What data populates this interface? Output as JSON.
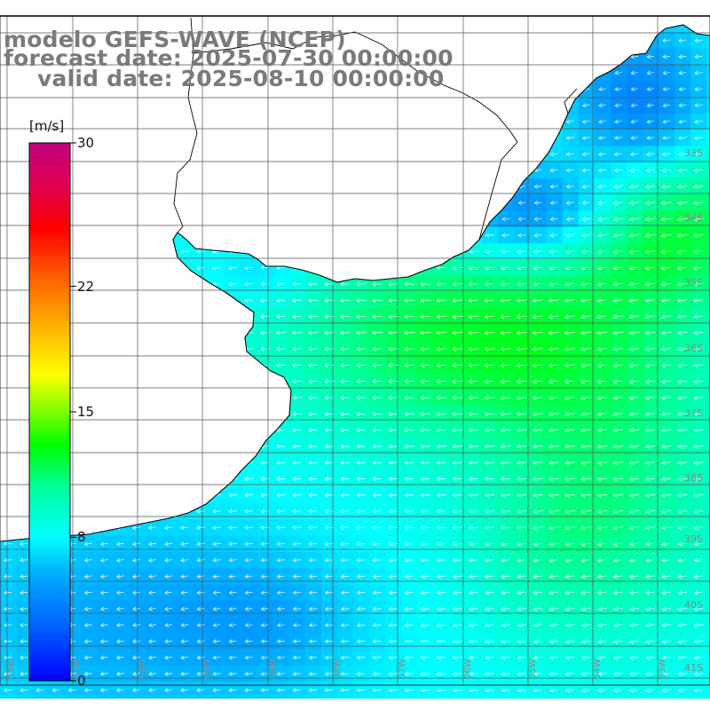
{
  "title": {
    "model": "modelo GEFS-WAVE (NCEP)",
    "forecast": "forecast date: 2025-07-30 00:00:00",
    "valid": "valid date: 2025-08-10 00:00:00"
  },
  "colorbar": {
    "unit": "[m/s]",
    "min": 0,
    "max": 30,
    "tick_labels": [
      "30",
      "22",
      "15",
      "8",
      "0"
    ],
    "tick_values": [
      30,
      22,
      15,
      8,
      0
    ],
    "colors": [
      "#0000ff",
      "#0060ff",
      "#00b0ff",
      "#00ffff",
      "#00ff9a",
      "#00ff00",
      "#7fff00",
      "#ffff00",
      "#ffb000",
      "#ff6000",
      "#ff0000",
      "#e00050",
      "#c00080"
    ]
  },
  "lat_labels": [
    "33S",
    "34S",
    "35S",
    "36S",
    "37S",
    "38S",
    "39S",
    "40S",
    "41S"
  ],
  "lon_labels": [
    "63W",
    "62W",
    "61W",
    "60W",
    "59W",
    "58W",
    "57W",
    "56W",
    "55W",
    "54W",
    "53W"
  ],
  "wind_field": {
    "unit": "m/s",
    "general_direction": "blowing toward the west / west-southwest",
    "ocean_min_approx": 6,
    "ocean_max_approx": 16
  },
  "colors": {
    "title_gray": "#7a7a7a",
    "grid": "#555555",
    "coast": "#000000",
    "land": "#ffffff"
  }
}
